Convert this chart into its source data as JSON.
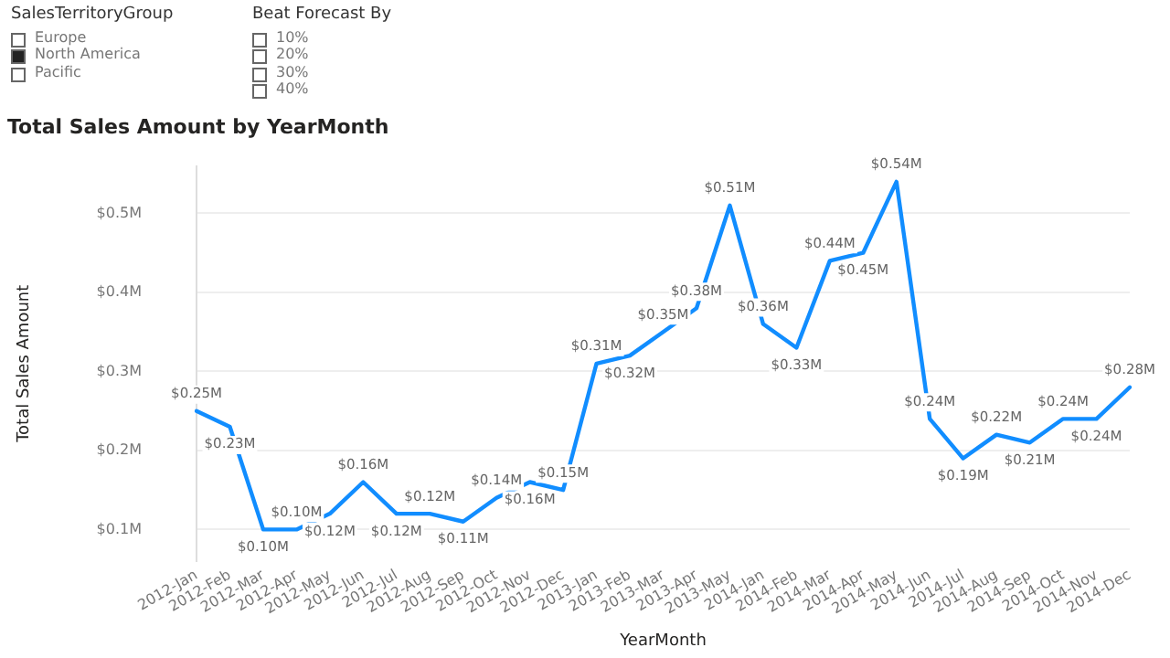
{
  "chart_data": {
    "type": "line",
    "title": "Total Sales Amount by YearMonth",
    "xlabel": "YearMonth",
    "ylabel": "Total Sales Amount",
    "annotations": [
      "SalesTerritoryGroup",
      "Europe",
      "North America",
      "Pacific",
      "Beat Forecast By",
      "10%",
      "20%",
      "30%",
      "40%"
    ],
    "categories": [
      "2012-Jan",
      "2012-Feb",
      "2012-Mar",
      "2012-Apr",
      "2012-May",
      "2012-Jun",
      "2012-Jul",
      "2012-Aug",
      "2012-Sep",
      "2012-Oct",
      "2012-Nov",
      "2012-Dec",
      "2013-Jan",
      "2013-Feb",
      "2013-Mar",
      "2013-Apr",
      "2013-May",
      "2014-Jan",
      "2014-Feb",
      "2014-Mar",
      "2014-Apr",
      "2014-May",
      "2014-Jun",
      "2014-Jul",
      "2014-Aug",
      "2014-Sep",
      "2014-Oct",
      "2014-Nov",
      "2014-Dec"
    ],
    "series": [
      {
        "color": "#118dff",
        "values": [
          0.25,
          0.23,
          0.1,
          0.1,
          0.12,
          0.16,
          0.12,
          0.12,
          0.11,
          0.14,
          0.16,
          0.15,
          0.31,
          0.32,
          0.35,
          0.38,
          0.51,
          0.36,
          0.33,
          0.44,
          0.45,
          0.54,
          0.24,
          0.19,
          0.22,
          0.21,
          0.24,
          0.24,
          0.28
        ],
        "value_labels": [
          "$0.25M",
          "$0.23M",
          "$0.10M",
          "$0.10M",
          "$0.12M",
          "$0.16M",
          "$0.12M",
          "$0.12M",
          "$0.11M",
          "$0.14M",
          "$0.16M",
          "$0.15M",
          "$0.31M",
          "$0.32M",
          "$0.35M",
          "$0.38M",
          "$0.51M",
          "$0.36M",
          "$0.33M",
          "$0.44M",
          "$0.45M",
          "$0.54M",
          "$0.24M",
          "$0.19M",
          "$0.22M",
          "$0.21M",
          "$0.24M",
          "$0.24M",
          "$0.28M"
        ]
      }
    ],
    "ylim": [
      0.06,
      0.56
    ],
    "yticks": [
      {
        "value": 0.1,
        "label": "$0.1M"
      },
      {
        "value": 0.2,
        "label": "$0.2M"
      },
      {
        "value": 0.3,
        "label": "$0.3M"
      },
      {
        "value": 0.4,
        "label": "$0.4M"
      },
      {
        "value": 0.5,
        "label": "$0.5M"
      }
    ],
    "grid": "y",
    "legend": false,
    "marker": "none",
    "line_style": "solid"
  }
}
